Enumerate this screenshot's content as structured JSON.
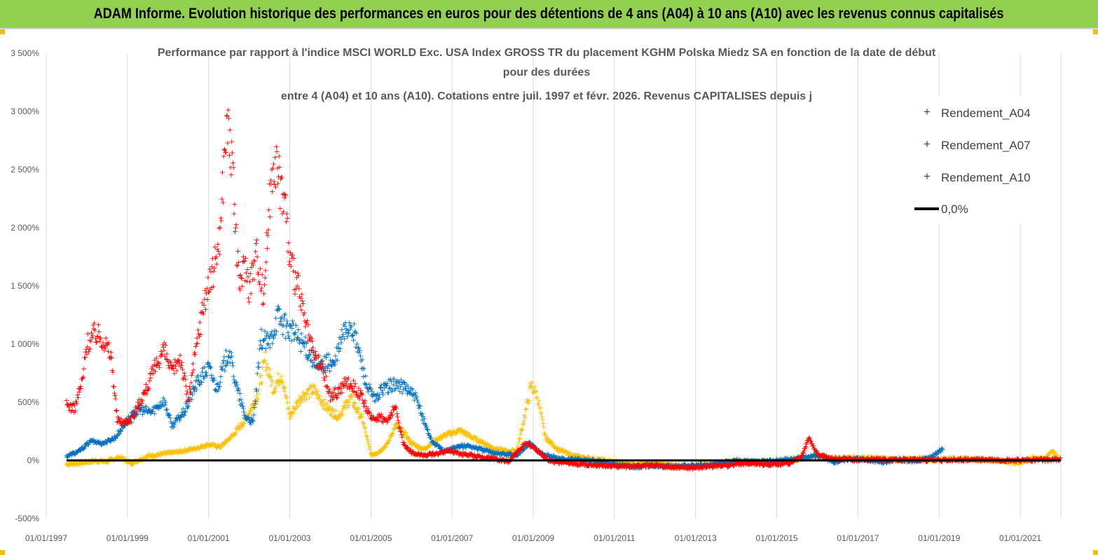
{
  "banner": {
    "text": "ADAM Informe. Evolution historique des performances en euros pour des détentions de 4 ans (A04) à 10 ans (A10) avec les revenus connus capitalisés"
  },
  "colors": {
    "banner_bg": "#92d050",
    "a04": "#ffc000",
    "a07": "#0070c0",
    "a10": "#ff0000",
    "zero_line": "#000000",
    "gridline": "#d9d9d9"
  },
  "chart_data": {
    "type": "scatter",
    "title": [
      "Performance par rapport à l'indice MSCI WORLD  Exc. USA Index GROSS TR  du placement KGHM Polska Miedz SA en fonction de la date de début",
      "pour des durées",
      "entre 4 (A04)  et 10 ans (A10). Cotations entre juil. 1997 et févr. 2026. Revenus CAPITALISES depuis j"
    ],
    "y_tick_labels": [
      "3 500%",
      "3 000%",
      "2 500%",
      "2 000%",
      "1 500%",
      "1 000%",
      "500%",
      "0%",
      "-500%"
    ],
    "y_tick_values": [
      3500,
      3000,
      2500,
      2000,
      1500,
      1000,
      500,
      0,
      -500
    ],
    "x_tick_labels": [
      "01/01/1997",
      "01/01/1999",
      "01/01/2001",
      "01/01/2003",
      "01/01/2005",
      "01/01/2007",
      "01/01/2009",
      "01/01/2011",
      "01/01/2013",
      "01/01/2015",
      "01/01/2017",
      "01/01/2019",
      "01/01/2021"
    ],
    "x_tick_years": [
      1997,
      1999,
      2001,
      2003,
      2005,
      2007,
      2009,
      2011,
      2013,
      2015,
      2017,
      2019,
      2021
    ],
    "xlim": [
      1997.0,
      2022.0
    ],
    "ylim": [
      -500,
      3500
    ],
    "grid": "vertical",
    "legend_position": "top-right",
    "series": [
      {
        "name": "Rendement_A04",
        "color": "#ffc000",
        "points": [
          [
            1997.5,
            -30
          ],
          [
            1997.8,
            -20
          ],
          [
            1998.2,
            0
          ],
          [
            1998.5,
            -5
          ],
          [
            1998.8,
            30
          ],
          [
            1999.1,
            -20
          ],
          [
            1999.5,
            40
          ],
          [
            1999.9,
            60
          ],
          [
            2000.3,
            80
          ],
          [
            2000.7,
            110
          ],
          [
            2001.0,
            140
          ],
          [
            2001.3,
            120
          ],
          [
            2001.6,
            220
          ],
          [
            2001.9,
            350
          ],
          [
            2002.2,
            550
          ],
          [
            2002.4,
            870
          ],
          [
            2002.6,
            620
          ],
          [
            2002.8,
            750
          ],
          [
            2003.0,
            380
          ],
          [
            2003.3,
            560
          ],
          [
            2003.6,
            610
          ],
          [
            2003.9,
            460
          ],
          [
            2004.2,
            380
          ],
          [
            2004.5,
            540
          ],
          [
            2004.8,
            350
          ],
          [
            2005.0,
            50
          ],
          [
            2005.2,
            80
          ],
          [
            2005.4,
            140
          ],
          [
            2005.6,
            300
          ],
          [
            2005.8,
            250
          ],
          [
            2006.0,
            150
          ],
          [
            2006.3,
            100
          ],
          [
            2006.6,
            180
          ],
          [
            2006.9,
            230
          ],
          [
            2007.2,
            260
          ],
          [
            2007.5,
            200
          ],
          [
            2007.8,
            150
          ],
          [
            2008.1,
            100
          ],
          [
            2008.4,
            80
          ],
          [
            2008.6,
            90
          ],
          [
            2008.8,
            400
          ],
          [
            2008.95,
            650
          ],
          [
            2009.1,
            560
          ],
          [
            2009.3,
            200
          ],
          [
            2009.6,
            100
          ],
          [
            2010.0,
            40
          ],
          [
            2010.4,
            20
          ],
          [
            2010.8,
            0
          ],
          [
            2011.2,
            -20
          ],
          [
            2011.6,
            -30
          ],
          [
            2012.0,
            -20
          ],
          [
            2012.4,
            -40
          ],
          [
            2012.8,
            -50
          ],
          [
            2013.2,
            -30
          ],
          [
            2013.6,
            -20
          ],
          [
            2014.0,
            0
          ],
          [
            2014.5,
            -10
          ],
          [
            2015.0,
            0
          ],
          [
            2015.5,
            10
          ],
          [
            2016.0,
            40
          ],
          [
            2016.5,
            20
          ],
          [
            2017.0,
            30
          ],
          [
            2017.5,
            20
          ],
          [
            2018.0,
            10
          ],
          [
            2018.5,
            20
          ],
          [
            2019.0,
            10
          ],
          [
            2019.5,
            20
          ],
          [
            2020.0,
            10
          ],
          [
            2020.5,
            0
          ],
          [
            2021.0,
            -20
          ],
          [
            2021.3,
            30
          ],
          [
            2021.6,
            20
          ],
          [
            2021.8,
            80
          ],
          [
            2021.95,
            20
          ]
        ]
      },
      {
        "name": "Rendement_A07",
        "color": "#0070c0",
        "points": [
          [
            1997.5,
            40
          ],
          [
            1997.8,
            80
          ],
          [
            1998.1,
            170
          ],
          [
            1998.4,
            150
          ],
          [
            1998.7,
            200
          ],
          [
            1999.0,
            350
          ],
          [
            1999.3,
            440
          ],
          [
            1999.6,
            420
          ],
          [
            1999.9,
            520
          ],
          [
            2000.1,
            300
          ],
          [
            2000.4,
            420
          ],
          [
            2000.7,
            660
          ],
          [
            2001.0,
            800
          ],
          [
            2001.2,
            620
          ],
          [
            2001.5,
            950
          ],
          [
            2001.7,
            620
          ],
          [
            2001.9,
            380
          ],
          [
            2002.1,
            330
          ],
          [
            2002.3,
            1050
          ],
          [
            2002.5,
            1000
          ],
          [
            2002.7,
            1250
          ],
          [
            2002.9,
            1150
          ],
          [
            2003.1,
            1100
          ],
          [
            2003.3,
            1020
          ],
          [
            2003.5,
            920
          ],
          [
            2003.7,
            780
          ],
          [
            2003.9,
            850
          ],
          [
            2004.1,
            820
          ],
          [
            2004.3,
            1080
          ],
          [
            2004.5,
            1180
          ],
          [
            2004.7,
            950
          ],
          [
            2004.9,
            640
          ],
          [
            2005.1,
            520
          ],
          [
            2005.3,
            620
          ],
          [
            2005.6,
            660
          ],
          [
            2005.9,
            620
          ],
          [
            2006.1,
            540
          ],
          [
            2006.3,
            350
          ],
          [
            2006.5,
            170
          ],
          [
            2006.8,
            80
          ],
          [
            2007.1,
            120
          ],
          [
            2007.4,
            130
          ],
          [
            2007.8,
            90
          ],
          [
            2008.2,
            60
          ],
          [
            2008.6,
            50
          ],
          [
            2008.9,
            150
          ],
          [
            2009.2,
            60
          ],
          [
            2009.6,
            20
          ],
          [
            2010.0,
            10
          ],
          [
            2010.5,
            0
          ],
          [
            2011.0,
            -30
          ],
          [
            2011.5,
            -50
          ],
          [
            2012.0,
            -40
          ],
          [
            2012.5,
            -50
          ],
          [
            2013.0,
            -40
          ],
          [
            2013.5,
            -30
          ],
          [
            2014.0,
            0
          ],
          [
            2014.5,
            -10
          ],
          [
            2015.0,
            0
          ],
          [
            2015.5,
            20
          ],
          [
            2016.0,
            50
          ],
          [
            2016.4,
            -10
          ],
          [
            2016.8,
            20
          ],
          [
            2017.2,
            10
          ],
          [
            2017.6,
            -10
          ],
          [
            2018.0,
            10
          ],
          [
            2018.4,
            0
          ],
          [
            2018.8,
            30
          ],
          [
            2019.0,
            80
          ],
          [
            2019.1,
            100
          ]
        ]
      },
      {
        "name": "Rendement_A10",
        "color": "#ff0000",
        "points": [
          [
            1997.5,
            480
          ],
          [
            1997.7,
            450
          ],
          [
            1997.9,
            700
          ],
          [
            1998.0,
            1000
          ],
          [
            1998.2,
            1100
          ],
          [
            1998.4,
            1050
          ],
          [
            1998.6,
            900
          ],
          [
            1998.75,
            350
          ],
          [
            1998.9,
            330
          ],
          [
            1999.1,
            360
          ],
          [
            1999.3,
            500
          ],
          [
            1999.5,
            640
          ],
          [
            1999.7,
            820
          ],
          [
            1999.9,
            960
          ],
          [
            2000.1,
            750
          ],
          [
            2000.3,
            900
          ],
          [
            2000.5,
            520
          ],
          [
            2000.7,
            980
          ],
          [
            2000.9,
            1400
          ],
          [
            2001.1,
            1600
          ],
          [
            2001.3,
            2000
          ],
          [
            2001.4,
            2750
          ],
          [
            2001.5,
            2900
          ],
          [
            2001.6,
            2400
          ],
          [
            2001.75,
            1500
          ],
          [
            2001.9,
            1700
          ],
          [
            2002.0,
            1500
          ],
          [
            2002.2,
            1800
          ],
          [
            2002.35,
            1400
          ],
          [
            2002.5,
            2200
          ],
          [
            2002.6,
            2650
          ],
          [
            2002.75,
            2400
          ],
          [
            2002.9,
            2200
          ],
          [
            2003.0,
            1700
          ],
          [
            2003.2,
            1500
          ],
          [
            2003.4,
            1150
          ],
          [
            2003.6,
            900
          ],
          [
            2003.8,
            800
          ],
          [
            2004.0,
            550
          ],
          [
            2004.2,
            600
          ],
          [
            2004.4,
            680
          ],
          [
            2004.6,
            640
          ],
          [
            2004.8,
            520
          ],
          [
            2005.0,
            360
          ],
          [
            2005.2,
            380
          ],
          [
            2005.4,
            340
          ],
          [
            2005.6,
            460
          ],
          [
            2005.8,
            150
          ],
          [
            2006.0,
            70
          ],
          [
            2006.3,
            50
          ],
          [
            2006.6,
            60
          ],
          [
            2006.9,
            90
          ],
          [
            2007.2,
            60
          ],
          [
            2007.6,
            40
          ],
          [
            2008.0,
            20
          ],
          [
            2008.4,
            0
          ],
          [
            2008.8,
            150
          ],
          [
            2009.0,
            120
          ],
          [
            2009.4,
            0
          ],
          [
            2009.8,
            -20
          ],
          [
            2010.3,
            -30
          ],
          [
            2010.8,
            -40
          ],
          [
            2011.3,
            -50
          ],
          [
            2011.8,
            -40
          ],
          [
            2012.3,
            -50
          ],
          [
            2012.8,
            -60
          ],
          [
            2013.3,
            -50
          ],
          [
            2013.8,
            -40
          ],
          [
            2014.3,
            -20
          ],
          [
            2014.8,
            -30
          ],
          [
            2015.3,
            -20
          ],
          [
            2015.6,
            30
          ],
          [
            2015.8,
            200
          ],
          [
            2016.0,
            60
          ],
          [
            2016.3,
            20
          ],
          [
            2017.0,
            10
          ],
          [
            2018.0,
            10
          ],
          [
            2019.0,
            5
          ],
          [
            2020.0,
            10
          ],
          [
            2021.0,
            5
          ],
          [
            2022.0,
            10
          ]
        ]
      }
    ],
    "reference_line": {
      "name": "0,0%",
      "y": 0,
      "color": "#000000"
    }
  }
}
